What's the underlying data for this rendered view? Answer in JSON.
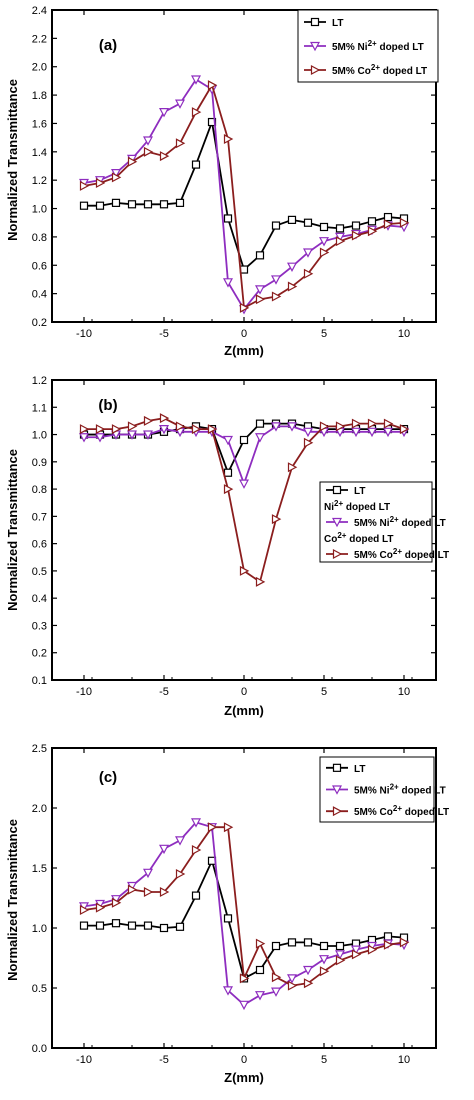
{
  "chart_data": [
    {
      "type": "line",
      "panel_label": "(a)",
      "xlabel": "Z(mm)",
      "ylabel": "Normalized Transmittance",
      "xlim": [
        -12,
        12
      ],
      "ylim": [
        0.2,
        2.4
      ],
      "xticks": [
        -10,
        -5,
        0,
        5,
        10
      ],
      "yticks": [
        0.2,
        0.4,
        0.6,
        0.8,
        1.0,
        1.2,
        1.4,
        1.6,
        1.8,
        2.0,
        2.2,
        2.4
      ],
      "ytick_labels": [
        "0.2",
        "0.4",
        "0.6",
        "0.8",
        "1.0",
        "1.2",
        "1.4",
        "1.6",
        "1.8",
        "2.0",
        "2.2",
        "2.4"
      ],
      "x": [
        -10,
        -9,
        -8,
        -7,
        -6,
        -5,
        -4,
        -3,
        -2,
        -1,
        0,
        1,
        2,
        3,
        4,
        5,
        6,
        7,
        8,
        9,
        10
      ],
      "legend_position": "top-right",
      "series": [
        {
          "name": "LT",
          "legend_main": "LT",
          "legend_sup": "",
          "legend_tail": "",
          "color": "#000000",
          "marker": "square",
          "values": [
            1.02,
            1.02,
            1.04,
            1.03,
            1.03,
            1.03,
            1.04,
            1.31,
            1.61,
            0.93,
            0.57,
            0.67,
            0.88,
            0.92,
            0.9,
            0.87,
            0.86,
            0.88,
            0.91,
            0.94,
            0.93
          ]
        },
        {
          "name": "5M% Ni2+ doped LT",
          "legend_main": "5M% Ni",
          "legend_sup": "2+",
          "legend_tail": " doped LT",
          "color": "#8e2dbf",
          "marker": "triangle-down",
          "values": [
            1.18,
            1.2,
            1.25,
            1.35,
            1.48,
            1.68,
            1.74,
            1.91,
            1.84,
            0.48,
            0.29,
            0.43,
            0.5,
            0.59,
            0.69,
            0.77,
            0.8,
            0.82,
            0.85,
            0.88,
            0.87
          ]
        },
        {
          "name": "5M% Co2+ doped LT",
          "legend_main": "5M% Co",
          "legend_sup": "2+",
          "legend_tail": " doped LT",
          "color": "#8b1e1e",
          "marker": "triangle-right",
          "values": [
            1.16,
            1.18,
            1.22,
            1.33,
            1.4,
            1.37,
            1.46,
            1.68,
            1.87,
            1.49,
            0.3,
            0.36,
            0.38,
            0.45,
            0.54,
            0.69,
            0.77,
            0.81,
            0.84,
            0.89,
            0.9
          ]
        }
      ]
    },
    {
      "type": "line",
      "panel_label": "(b)",
      "xlabel": "Z(mm)",
      "ylabel": "Normalized Transmittance",
      "xlim": [
        -12,
        12
      ],
      "ylim": [
        0.1,
        1.2
      ],
      "xticks": [
        -10,
        -5,
        0,
        5,
        10
      ],
      "yticks": [
        0.1,
        0.2,
        0.3,
        0.4,
        0.5,
        0.6,
        0.7,
        0.8,
        0.9,
        1.0,
        1.1,
        1.2
      ],
      "ytick_labels": [
        "0.1",
        "0.2",
        "0.3",
        "0.4",
        "0.5",
        "0.6",
        "0.7",
        "0.8",
        "0.9",
        "1.0",
        "1.1",
        "1.2"
      ],
      "x": [
        -10,
        -9,
        -8,
        -7,
        -6,
        -5,
        -4,
        -3,
        -2,
        -1,
        0,
        1,
        2,
        3,
        4,
        5,
        6,
        7,
        8,
        9,
        10
      ],
      "legend_position": "right",
      "legend_extra": [
        {
          "main": "Ni",
          "sup": "2+",
          "tail": " doped LT",
          "after": 0
        },
        {
          "main": "Co",
          "sup": "2+",
          "tail": " doped LT",
          "after": 1
        }
      ],
      "series": [
        {
          "name": "LT",
          "legend_main": "LT",
          "legend_sup": "",
          "legend_tail": "",
          "color": "#000000",
          "marker": "square",
          "values": [
            1.0,
            1.0,
            1.0,
            1.0,
            1.0,
            1.01,
            1.02,
            1.03,
            1.02,
            0.86,
            0.98,
            1.04,
            1.04,
            1.04,
            1.03,
            1.02,
            1.02,
            1.02,
            1.02,
            1.02,
            1.02
          ]
        },
        {
          "name": "5M% Ni2+ doped LT",
          "legend_main": "5M% Ni",
          "legend_sup": "2+",
          "legend_tail": " doped LT",
          "color": "#8e2dbf",
          "marker": "triangle-down",
          "values": [
            0.99,
            0.99,
            1.0,
            1.0,
            1.0,
            1.02,
            1.01,
            1.01,
            1.01,
            0.98,
            0.82,
            0.99,
            1.03,
            1.03,
            1.01,
            1.01,
            1.01,
            1.01,
            1.01,
            1.01,
            1.01
          ]
        },
        {
          "name": "5M% Co2+ doped LT",
          "legend_main": "5M% Co",
          "legend_sup": "2+",
          "legend_tail": " doped LT",
          "color": "#8b1e1e",
          "marker": "triangle-right",
          "values": [
            1.02,
            1.02,
            1.02,
            1.03,
            1.05,
            1.06,
            1.03,
            1.02,
            1.02,
            0.8,
            0.5,
            0.46,
            0.69,
            0.88,
            0.97,
            1.03,
            1.03,
            1.04,
            1.04,
            1.04,
            1.02
          ]
        }
      ]
    },
    {
      "type": "line",
      "panel_label": "(c)",
      "xlabel": "Z(mm)",
      "ylabel": "Normalized Transmittance",
      "xlim": [
        -12,
        12
      ],
      "ylim": [
        0.0,
        2.5
      ],
      "xticks": [
        -10,
        -5,
        0,
        5,
        10
      ],
      "yticks": [
        0.0,
        0.5,
        1.0,
        1.5,
        2.0,
        2.5
      ],
      "ytick_labels": [
        "0.0",
        "0.5",
        "1.0",
        "1.5",
        "2.0",
        "2.5"
      ],
      "x": [
        -10,
        -9,
        -8,
        -7,
        -6,
        -5,
        -4,
        -3,
        -2,
        -1,
        0,
        1,
        2,
        3,
        4,
        5,
        6,
        7,
        8,
        9,
        10
      ],
      "legend_position": "top-right",
      "series": [
        {
          "name": "LT",
          "legend_main": "LT",
          "legend_sup": "",
          "legend_tail": "",
          "color": "#000000",
          "marker": "square",
          "values": [
            1.02,
            1.02,
            1.04,
            1.02,
            1.02,
            1.0,
            1.01,
            1.27,
            1.56,
            1.08,
            0.58,
            0.65,
            0.85,
            0.88,
            0.88,
            0.85,
            0.85,
            0.87,
            0.9,
            0.93,
            0.92
          ]
        },
        {
          "name": "5M% Ni2+ doped LT",
          "legend_main": "5M% Ni",
          "legend_sup": "2+",
          "legend_tail": " doped LT",
          "color": "#8e2dbf",
          "marker": "triangle-down",
          "values": [
            1.18,
            1.2,
            1.24,
            1.35,
            1.46,
            1.66,
            1.73,
            1.88,
            1.84,
            0.48,
            0.36,
            0.44,
            0.47,
            0.58,
            0.65,
            0.74,
            0.78,
            0.82,
            0.85,
            0.87,
            0.86
          ]
        },
        {
          "name": "5M% Co2+ doped LT",
          "legend_main": "5M% Co",
          "legend_sup": "2+",
          "legend_tail": " doped LT",
          "color": "#8b1e1e",
          "marker": "triangle-right",
          "values": [
            1.15,
            1.17,
            1.21,
            1.32,
            1.3,
            1.3,
            1.45,
            1.65,
            1.84,
            1.84,
            0.58,
            0.87,
            0.59,
            0.52,
            0.54,
            0.64,
            0.73,
            0.78,
            0.82,
            0.86,
            0.88
          ]
        }
      ]
    }
  ]
}
